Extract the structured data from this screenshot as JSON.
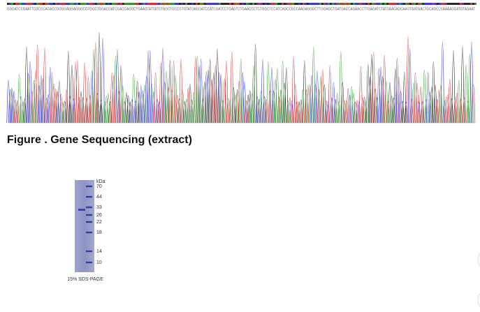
{
  "sequence_text": "GGGATCCGAATTCGCCCACACCGGGGAGGAGGGCGTGGCTGGACGATCGACGAGGCTGAAGTATTATGTGGCTGCCGTGTATGAGGATCCATCGATCCTGAGTCTGAACCCTCTGGCTCCATCAGCCGCCAAGAGGGCTTGGAGCTGATGACCAGAACCTTGAGATCTATGAACAGCAAGTGATGACTGCAGCCCAAAAGGATGTAGAAT",
  "figure_caption": "Figure . Gene Sequencing (extract)",
  "gel": {
    "unit": "kDa",
    "markers": [
      70,
      44,
      33,
      26,
      22,
      18,
      14,
      10
    ],
    "caption": "15% SDS-PAGE"
  }
}
